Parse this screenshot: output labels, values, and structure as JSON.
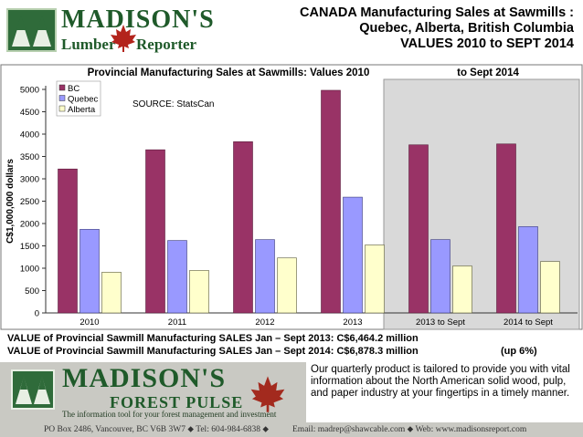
{
  "header": {
    "logo_name": "MADISON'S",
    "logo_sub_left": "Lumber",
    "logo_sub_right": "Reporter",
    "title_line1": "CANADA Manufacturing Sales at Sawmills :",
    "title_line2": "Quebec, Alberta, British Columbia",
    "title_line3": "VALUES 2010 to SEPT 2014"
  },
  "colors": {
    "bc": "#993366",
    "quebec": "#9999ff",
    "alberta": "#ffffcc",
    "shade": "#d9d9d9"
  },
  "chart_data": {
    "type": "bar",
    "title": "Provincial Manufacturing Sales at Sawmills: Values 2010",
    "title_right": "to Sept 2014",
    "source_note": "SOURCE: StatsCan",
    "xlabel": "",
    "ylabel": "C$1,000,000 dollars",
    "ylim": [
      0,
      5000
    ],
    "yticks": [
      "0",
      "500",
      "1000",
      "1500",
      "2000",
      "2500",
      "3000",
      "3500",
      "4000",
      "4500",
      "5000"
    ],
    "categories": [
      "2010",
      "2011",
      "2012",
      "2013",
      "2013 to Sept",
      "2014 to Sept"
    ],
    "shaded_categories": [
      "2013 to Sept",
      "2014 to Sept"
    ],
    "grid": false,
    "legend": "top-left",
    "series": [
      {
        "name": "BC",
        "values": [
          3220,
          3650,
          3830,
          4980,
          3760,
          3780
        ]
      },
      {
        "name": "Quebec",
        "values": [
          1870,
          1620,
          1640,
          2590,
          1640,
          1930
        ]
      },
      {
        "name": "Alberta",
        "values": [
          910,
          950,
          1230,
          1520,
          1050,
          1150
        ]
      }
    ]
  },
  "stats": {
    "line1": "VALUE of Provincial Sawmill Manufacturing SALES  Jan – Sept 2013: C$6,464.2  million",
    "line2": "VALUE of Provincial Sawmill Manufacturing SALES  Jan – Sept 2014: C$6,878.3  million",
    "change": "(up 6%)"
  },
  "footer": {
    "logo_name": "MADISON'S",
    "logo_sub": "FOREST  PULSE",
    "tagline": "The information tool for your forest management and investment",
    "description": "Our quarterly product is tailored to provide you with vital information about the North American solid wood, pulp, and paper industry at your fingertips in a timely manner.",
    "address": "PO Box 2486, Vancouver, BC   V6B 3W7 ⬥ Tel: 604-984-6838 ⬥",
    "email": "Email: madrep@shawcable.com ⬥ Web: www.madisonsreport.com"
  }
}
